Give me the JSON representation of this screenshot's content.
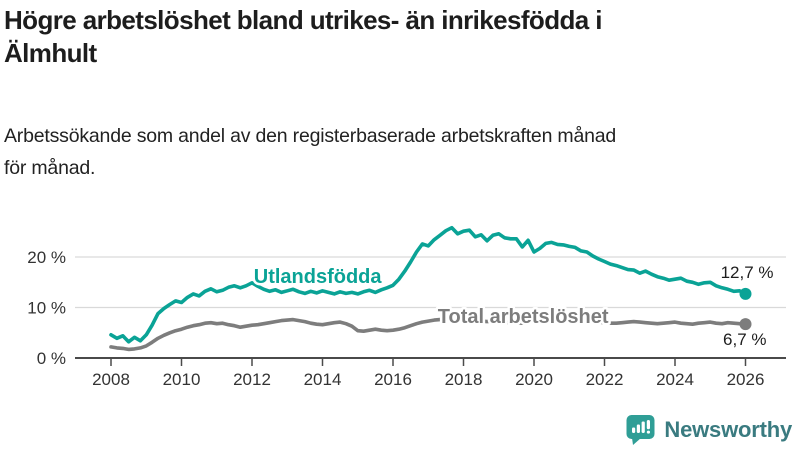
{
  "header": {
    "title_lines": [
      "Högre arbetslöshet bland utrikes- än inrikesfödda i",
      "Älmhult"
    ],
    "subtitle_lines": [
      "Arbetssökande som andel av den registerbaserade arbetskraften månad",
      "för månad."
    ]
  },
  "footer": {
    "brand": "Newsworthy",
    "logo_icon": "newsworthy-speech-bubble-bar-chart-icon"
  },
  "colors": {
    "teal_series": "#0aa396",
    "gray_series": "#7d7d7d",
    "grid": "#d9d9d9",
    "axis": "#4a4a4a",
    "tick_text": "#333333",
    "value_text": "#1d1d1d",
    "title_text": "#1d1d1d",
    "logo_bubble": "#2f9e96",
    "logo_wordmark": "#3a7b80"
  },
  "chart_data": {
    "type": "line",
    "title": "Högre arbetslöshet bland utrikes- än inrikesfödda i Älmhult",
    "ylabel": "",
    "xlabel": "",
    "ylim": [
      0,
      28
    ],
    "x_range": [
      2008,
      2026
    ],
    "grid": "horizontal",
    "legend_position": "inline-labels",
    "x_ticks": [
      2008,
      2010,
      2012,
      2014,
      2016,
      2018,
      2020,
      2022,
      2024,
      2026
    ],
    "y_ticks": [
      {
        "value": 0,
        "label": "0 %"
      },
      {
        "value": 10,
        "label": "10 %"
      },
      {
        "value": 20,
        "label": "20 %"
      }
    ],
    "series": [
      {
        "id": "utlandsfodda",
        "name": "Utlandsfödda",
        "color": "#0aa396",
        "x_start": 2008.0,
        "x_step": 0.166667,
        "end_value": 12.7,
        "end_value_label": "12,7 %",
        "label_pos": {
          "x": 2012.05,
          "y": 14.85
        },
        "values": [
          4.6,
          3.9,
          4.4,
          3.2,
          4.1,
          3.4,
          4.6,
          6.5,
          8.8,
          9.8,
          10.6,
          11.3,
          11.0,
          12.0,
          12.7,
          12.3,
          13.2,
          13.7,
          13.1,
          13.4,
          14.0,
          14.3,
          13.9,
          14.3,
          14.9,
          14.2,
          13.6,
          13.2,
          13.5,
          13.0,
          13.3,
          13.6,
          13.1,
          12.8,
          13.2,
          12.9,
          13.3,
          13.0,
          12.7,
          13.1,
          12.8,
          13.0,
          12.7,
          13.1,
          13.4,
          13.0,
          13.5,
          13.9,
          14.4,
          15.6,
          17.2,
          19.0,
          21.0,
          22.6,
          22.2,
          23.4,
          24.3,
          25.2,
          25.8,
          24.6,
          25.1,
          25.3,
          24.0,
          24.4,
          23.2,
          24.3,
          24.6,
          23.8,
          23.6,
          23.6,
          22.0,
          23.3,
          21.0,
          21.7,
          22.7,
          22.9,
          22.5,
          22.4,
          22.1,
          21.9,
          21.2,
          21.0,
          20.2,
          19.6,
          19.1,
          18.6,
          18.3,
          17.9,
          17.5,
          17.4,
          16.8,
          17.2,
          16.6,
          16.1,
          15.8,
          15.4,
          15.6,
          15.8,
          15.2,
          15.0,
          14.6,
          14.9,
          15.0,
          14.3,
          13.9,
          13.6,
          13.2,
          13.3,
          12.7
        ]
      },
      {
        "id": "total-arbetsloshet",
        "name": "Total arbetslöshet",
        "color": "#7d7d7d",
        "x_start": 2008.0,
        "x_step": 0.166667,
        "end_value": 6.7,
        "end_value_label": "6,7 %",
        "label_pos": {
          "x": 2017.27,
          "y": 6.9
        },
        "values": [
          2.2,
          2.0,
          1.9,
          1.7,
          1.8,
          2.0,
          2.4,
          3.1,
          3.9,
          4.5,
          5.0,
          5.4,
          5.7,
          6.1,
          6.4,
          6.6,
          6.9,
          7.0,
          6.8,
          6.9,
          6.6,
          6.4,
          6.1,
          6.3,
          6.5,
          6.6,
          6.8,
          7.0,
          7.2,
          7.4,
          7.5,
          7.6,
          7.4,
          7.2,
          6.9,
          6.7,
          6.6,
          6.8,
          7.0,
          7.1,
          6.8,
          6.3,
          5.4,
          5.3,
          5.5,
          5.7,
          5.5,
          5.4,
          5.5,
          5.7,
          6.0,
          6.4,
          6.8,
          7.1,
          7.3,
          7.5,
          7.6,
          7.7,
          7.7,
          7.6,
          7.5,
          7.6,
          7.4,
          7.3,
          7.2,
          7.3,
          7.2,
          7.1,
          7.0,
          7.0,
          6.9,
          7.1,
          7.3,
          7.8,
          8.2,
          8.3,
          8.1,
          7.9,
          7.8,
          7.7,
          7.5,
          7.3,
          7.2,
          7.1,
          7.0,
          6.9,
          6.9,
          7.0,
          7.1,
          7.2,
          7.1,
          7.0,
          6.9,
          6.8,
          6.9,
          7.0,
          7.1,
          6.9,
          6.8,
          6.7,
          6.9,
          7.0,
          7.1,
          6.9,
          6.8,
          7.0,
          6.9,
          6.8,
          6.7
        ]
      }
    ]
  }
}
